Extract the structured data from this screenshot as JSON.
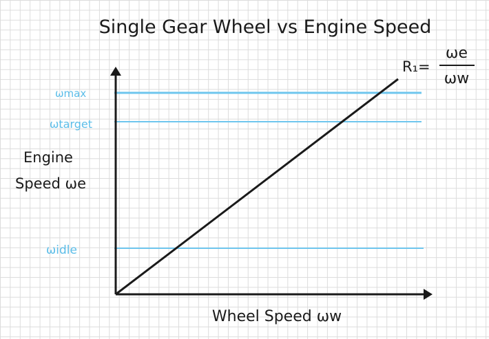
{
  "title": "Single Gear Wheel vs Engine Speed",
  "axes": {
    "x_label": "Wheel Speed ωw",
    "y_label_line1": "Engine",
    "y_label_line2": "Speed ωe"
  },
  "levels": [
    {
      "label": "ωmax"
    },
    {
      "label": "ωtarget"
    },
    {
      "label": "ωidle"
    }
  ],
  "ratio": {
    "prefix": "R₁=",
    "numerator": "ωe",
    "denominator": "ωw"
  },
  "colors": {
    "ink": "#1a1a1a",
    "level_line": "#6ec6ee",
    "level_text": "#5bbde8"
  }
}
